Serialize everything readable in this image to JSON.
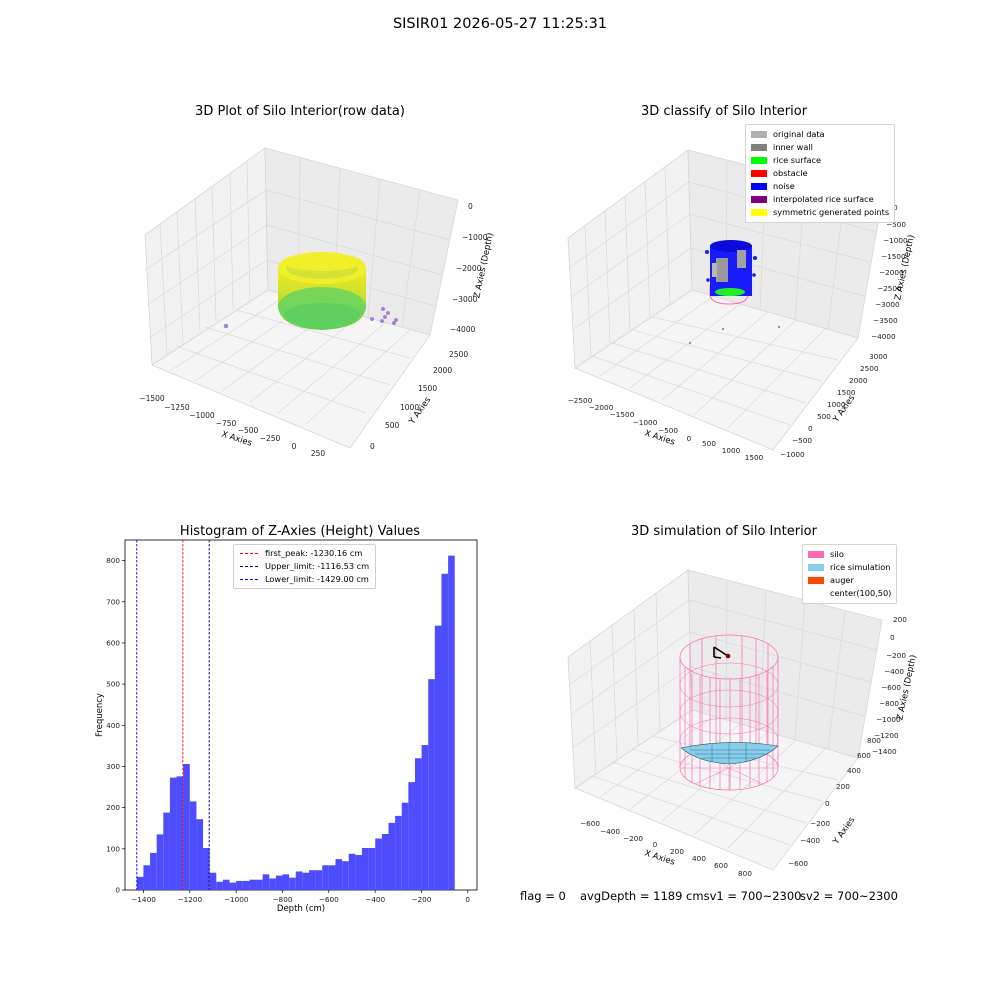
{
  "suptitle": "SISIR01 2026-05-27 11:25:31",
  "panels": {
    "raw": {
      "title": "3D Plot of Silo Interior(row data)",
      "xlabel": "X Axies",
      "ylabel": "Y Axies",
      "zlabel": "Z Axies (Depth)",
      "xticks": [
        "−1500",
        "−1250",
        "−1000",
        "−750",
        "−500",
        "−250",
        "0",
        "250"
      ],
      "yticks": [
        "0",
        "500",
        "1000",
        "1500",
        "2000",
        "2500"
      ],
      "zticks": [
        "0",
        "−1000",
        "−2000",
        "−3000",
        "−4000"
      ]
    },
    "classify": {
      "title": "3D classify of Silo Interior",
      "xlabel": "X Axies",
      "ylabel": "Y Axies",
      "zlabel": "Z Axies (Depth)",
      "xticks": [
        "−2500",
        "−2000",
        "−1500",
        "−1000",
        "−500",
        "0",
        "500",
        "1000",
        "1500"
      ],
      "yticks": [
        "−1000",
        "−500",
        "0",
        "500",
        "1000",
        "1500",
        "2000",
        "2500",
        "3000"
      ],
      "zticks": [
        "0",
        "−500",
        "−1000",
        "−1500",
        "−2000",
        "−2500",
        "−3000",
        "−3500",
        "−4000"
      ],
      "legend": [
        {
          "label": "original data",
          "color": "#b0b0b0"
        },
        {
          "label": "inner wall",
          "color": "#808080"
        },
        {
          "label": "rice surface",
          "color": "#00ff00"
        },
        {
          "label": "obstacle",
          "color": "#ff0000"
        },
        {
          "label": "noise",
          "color": "#0000ff"
        },
        {
          "label": "interpolated rice surface",
          "color": "#800080"
        },
        {
          "label": "symmetric generated points",
          "color": "#ffff00"
        }
      ]
    },
    "simulation": {
      "title": "3D simulation of Silo Interior",
      "xlabel": "X Axies",
      "ylabel": "Y Axies",
      "zlabel": "Z Axies (Depth)",
      "xticks": [
        "−600",
        "−400",
        "−200",
        "0",
        "200",
        "400",
        "600",
        "800"
      ],
      "yticks": [
        "−600",
        "−400",
        "−200",
        "0",
        "200",
        "400",
        "600",
        "800"
      ],
      "zticks": [
        "200",
        "0",
        "−200",
        "−400",
        "−600",
        "−800",
        "−1000",
        "−1200",
        "−1400"
      ],
      "legend": [
        {
          "label": "silo",
          "color": "#ff69b4"
        },
        {
          "label": "rice simulation",
          "color": "#87ceeb"
        },
        {
          "label": "auger",
          "color": "#ff4500"
        },
        {
          "label": "center(100,50)",
          "color": "#ffffff"
        }
      ]
    }
  },
  "footer": {
    "flag": "flag = 0",
    "avg": "avgDepth = 1189 cmsv1 = 700~2300",
    "sv2": "sv2 = 700~2300"
  },
  "chart_data": [
    {
      "type": "bar",
      "title": "Histogram of Z-Axies (Height) Values",
      "xlabel": "Depth (cm)",
      "ylabel": "Frequency",
      "xlim": [
        -1480,
        40
      ],
      "ylim": [
        0,
        850
      ],
      "xticks": [
        -1400,
        -1200,
        -1000,
        -800,
        -600,
        -400,
        -200,
        0
      ],
      "yticks": [
        0,
        100,
        200,
        300,
        400,
        500,
        600,
        700,
        800
      ],
      "bin_start": -1429,
      "bin_width": 28.6,
      "color": "#4d4dff",
      "values": [
        32,
        60,
        90,
        135,
        188,
        273,
        276,
        306,
        215,
        172,
        102,
        42,
        20,
        25,
        18,
        22,
        22,
        25,
        25,
        38,
        28,
        35,
        38,
        30,
        45,
        42,
        48,
        48,
        60,
        60,
        75,
        70,
        88,
        85,
        102,
        102,
        125,
        136,
        163,
        180,
        212,
        262,
        320,
        352,
        512,
        642,
        768,
        812
      ],
      "lines": [
        {
          "label": "first_peak: -1230.16 cm",
          "value": -1230.16,
          "color": "#ff0000"
        },
        {
          "label": "Upper_limit: -1116.53 cm",
          "value": -1116.53,
          "color": "#00008b"
        },
        {
          "label": "Lower_limit: -1429.00 cm",
          "value": -1429.0,
          "color": "#0000ff"
        }
      ],
      "grid": false,
      "legend": "top-center"
    }
  ]
}
